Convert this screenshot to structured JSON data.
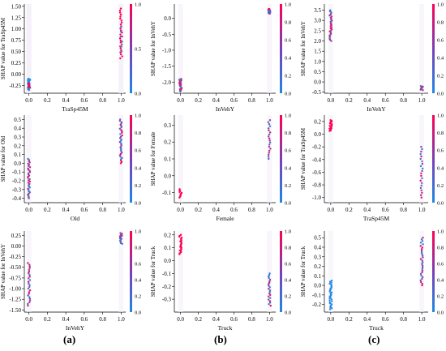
{
  "colors": {
    "low": "#1e88e5",
    "high": "#ff0052",
    "axis": "#000000",
    "text": "#000000"
  },
  "panel_labels": [
    "(a)",
    "(b)",
    "(c)"
  ],
  "chart_data": [
    {
      "type": "scatter",
      "xlabel": "TraSp45M",
      "ylabel": "SHAP value for TraSp45M",
      "xticks": [
        "0.0",
        "0.2",
        "0.4",
        "0.6",
        "0.8",
        "1.0"
      ],
      "xlim": [
        -0.05,
        1.05
      ],
      "yticks": [
        "-0.25",
        "0.00",
        "0.25",
        "0.50",
        "0.75",
        "1.00",
        "1.25",
        "1.50"
      ],
      "ylim": [
        -0.42,
        1.55
      ],
      "colorbar_ticks": [
        "0.0",
        "0.5",
        "1.0"
      ],
      "series": [
        {
          "x": 0.0,
          "ymin": -0.35,
          "ymax": -0.1,
          "n": 26,
          "c": "low"
        },
        {
          "x": 0.0,
          "ymin": -0.3,
          "ymax": -0.2,
          "n": 6,
          "c": "high"
        },
        {
          "x": 1.0,
          "ymin": 0.35,
          "ymax": 1.45,
          "n": 26,
          "c": "high"
        },
        {
          "x": 1.0,
          "ymin": 0.5,
          "ymax": 1.05,
          "n": 6,
          "c": "low"
        }
      ]
    },
    {
      "type": "scatter",
      "xlabel": "InVehY",
      "ylabel": "SHAP value for InVehY",
      "xticks": [
        "0.0",
        "0.2",
        "0.4",
        "0.6",
        "0.8",
        "1.0"
      ],
      "xlim": [
        -0.07,
        1.07
      ],
      "yticks": [
        "-2.0",
        "-1.5",
        "-1.0",
        "-0.5",
        "0.0"
      ],
      "ylim": [
        -2.35,
        0.45
      ],
      "colorbar_ticks": [
        "0.0",
        "0.2",
        "0.4",
        "0.6",
        "0.8",
        "1.0"
      ],
      "series": [
        {
          "x": 0.0,
          "ymin": -2.3,
          "ymax": -1.9,
          "n": 22,
          "c": "mix"
        },
        {
          "x": 1.0,
          "ymin": 0.15,
          "ymax": 0.3,
          "n": 18,
          "c": "mix"
        }
      ]
    },
    {
      "type": "scatter",
      "xlabel": "InVehY",
      "ylabel": "SHAP value for InVehY",
      "xticks": [
        "0.0",
        "0.2",
        "0.4",
        "0.6",
        "0.8",
        "1.0"
      ],
      "xlim": [
        -0.07,
        1.07
      ],
      "yticks": [
        "-0.5",
        "0.0",
        "0.5",
        "1.0",
        "1.5",
        "2.0",
        "2.5",
        "3.0",
        "3.5"
      ],
      "ylim": [
        -0.55,
        3.8
      ],
      "colorbar_ticks": [
        "0.0",
        "0.2",
        "0.4",
        "0.6",
        "0.8",
        "1.0"
      ],
      "series": [
        {
          "x": 0.0,
          "ymin": 2.0,
          "ymax": 3.5,
          "n": 30,
          "c": "mix"
        },
        {
          "x": 1.0,
          "ymin": -0.4,
          "ymax": -0.2,
          "n": 10,
          "c": "mix"
        }
      ]
    },
    {
      "type": "scatter",
      "xlabel": "Old",
      "ylabel": "SHAP value for Old",
      "xticks": [
        "0.0",
        "0.2",
        "0.4",
        "0.6",
        "0.8",
        "1.0"
      ],
      "xlim": [
        -0.05,
        1.05
      ],
      "yticks": [
        "-0.4",
        "-0.3",
        "-0.2",
        "-0.1",
        "0.0",
        "0.1",
        "0.2",
        "0.3",
        "0.4",
        "0.5"
      ],
      "ylim": [
        -0.45,
        0.55
      ],
      "colorbar_ticks": [
        "0.0",
        "0.2",
        "0.4",
        "0.6",
        "0.8",
        "1.0"
      ],
      "series": [
        {
          "x": 0.0,
          "ymin": -0.4,
          "ymax": 0.05,
          "n": 34,
          "c": "mix"
        },
        {
          "x": 1.0,
          "ymin": 0.0,
          "ymax": 0.5,
          "n": 34,
          "c": "mix"
        }
      ]
    },
    {
      "type": "scatter",
      "xlabel": "Female",
      "ylabel": "SHAP value for Female",
      "xticks": [
        "0.0",
        "0.2",
        "0.4",
        "0.6",
        "0.8",
        "1.0"
      ],
      "xlim": [
        -0.07,
        1.07
      ],
      "yticks": [
        "-0.1",
        "0.0",
        "0.1",
        "0.2",
        "0.3"
      ],
      "ylim": [
        -0.16,
        0.36
      ],
      "colorbar_ticks": [
        "0.0",
        "0.2",
        "0.4",
        "0.6",
        "0.8",
        "1.0"
      ],
      "series": [
        {
          "x": 0.0,
          "ymin": -0.13,
          "ymax": -0.08,
          "n": 10,
          "c": "high"
        },
        {
          "x": 1.0,
          "ymin": 0.1,
          "ymax": 0.33,
          "n": 20,
          "c": "mix"
        }
      ]
    },
    {
      "type": "scatter",
      "xlabel": "TraSp45M",
      "ylabel": "SHAP value for TraSp45M",
      "xticks": [
        "0.0",
        "0.2",
        "0.4",
        "0.6",
        "0.8",
        "1.0"
      ],
      "xlim": [
        -0.07,
        1.07
      ],
      "yticks": [
        "-1.0",
        "-0.8",
        "-0.6",
        "-0.4",
        "-0.2",
        "0.0",
        "0.2"
      ],
      "ylim": [
        -1.08,
        0.3
      ],
      "colorbar_ticks": [
        "0.0",
        "0.2",
        "0.4",
        "0.6",
        "0.8",
        "1.0"
      ],
      "series": [
        {
          "x": 0.0,
          "ymin": 0.05,
          "ymax": 0.22,
          "n": 20,
          "c": "high"
        },
        {
          "x": 1.0,
          "ymin": -1.0,
          "ymax": -0.2,
          "n": 22,
          "c": "mix"
        }
      ]
    },
    {
      "type": "scatter",
      "xlabel": "InVehY",
      "ylabel": "SHAP value for InVehY",
      "xticks": [
        "0.0",
        "0.2",
        "0.4",
        "0.6",
        "0.8",
        "1.0"
      ],
      "xlim": [
        -0.05,
        1.05
      ],
      "yticks": [
        "-1.50",
        "-1.25",
        "-1.00",
        "-0.75",
        "-0.50",
        "-0.25",
        "0.00",
        "0.25"
      ],
      "ylim": [
        -1.55,
        0.35
      ],
      "colorbar_ticks": [
        "0.0",
        "0.2",
        "0.4",
        "0.6",
        "0.8",
        "1.0"
      ],
      "series": [
        {
          "x": 0.0,
          "ymin": -1.4,
          "ymax": -0.4,
          "n": 26,
          "c": "mix"
        },
        {
          "x": 1.0,
          "ymin": 0.05,
          "ymax": 0.3,
          "n": 18,
          "c": "mix"
        }
      ]
    },
    {
      "type": "scatter",
      "xlabel": "Truck",
      "ylabel": "SHAP value for Truck",
      "xticks": [
        "0.0",
        "0.2",
        "0.4",
        "0.6",
        "0.8",
        "1.0"
      ],
      "xlim": [
        -0.07,
        1.07
      ],
      "yticks": [
        "-0.3",
        "-0.2",
        "-0.1",
        "0.0",
        "0.1",
        "0.2"
      ],
      "ylim": [
        -0.4,
        0.23
      ],
      "colorbar_ticks": [
        "0.0",
        "0.2",
        "0.4",
        "0.6",
        "0.8",
        "1.0"
      ],
      "series": [
        {
          "x": 0.0,
          "ymin": 0.05,
          "ymax": 0.2,
          "n": 22,
          "c": "high"
        },
        {
          "x": 1.0,
          "ymin": -0.35,
          "ymax": -0.1,
          "n": 22,
          "c": "mix"
        }
      ]
    },
    {
      "type": "scatter",
      "xlabel": "Truck",
      "ylabel": "SHAP value for Truck",
      "xticks": [
        "0.0",
        "0.2",
        "0.4",
        "0.6",
        "0.8",
        "1.0"
      ],
      "xlim": [
        -0.07,
        1.07
      ],
      "yticks": [
        "-0.2",
        "-0.1",
        "0.0",
        "0.1",
        "0.2",
        "0.3",
        "0.4",
        "0.5"
      ],
      "ylim": [
        -0.28,
        0.57
      ],
      "colorbar_ticks": [
        "0.0",
        "0.2",
        "0.4",
        "0.6",
        "0.8",
        "1.0"
      ],
      "series": [
        {
          "x": 0.0,
          "ymin": -0.25,
          "ymax": 0.05,
          "n": 30,
          "c": "low"
        },
        {
          "x": 1.0,
          "ymin": 0.0,
          "ymax": 0.5,
          "n": 30,
          "c": "mix"
        }
      ]
    }
  ]
}
